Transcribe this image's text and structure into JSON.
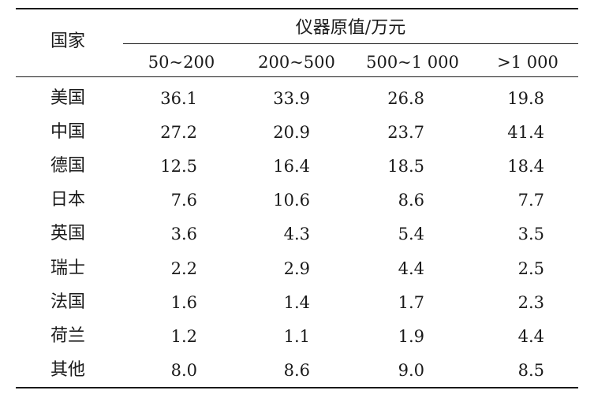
{
  "table": {
    "corner_header": "国家",
    "group_header": "仪器原值/万元",
    "columns": [
      "50~200",
      "200~500",
      "500~1 000",
      ">1 000"
    ],
    "rows": [
      {
        "country": "美国",
        "values": [
          "36.1",
          "33.9",
          "26.8",
          "19.8"
        ]
      },
      {
        "country": "中国",
        "values": [
          "27.2",
          "20.9",
          "23.7",
          "41.4"
        ]
      },
      {
        "country": "德国",
        "values": [
          "12.5",
          "16.4",
          "18.5",
          "18.4"
        ]
      },
      {
        "country": "日本",
        "values": [
          "7.6",
          "10.6",
          "8.6",
          "7.7"
        ]
      },
      {
        "country": "英国",
        "values": [
          "3.6",
          "4.3",
          "5.4",
          "3.5"
        ]
      },
      {
        "country": "瑞士",
        "values": [
          "2.2",
          "2.9",
          "4.4",
          "2.5"
        ]
      },
      {
        "country": "法国",
        "values": [
          "1.6",
          "1.4",
          "1.7",
          "2.3"
        ]
      },
      {
        "country": "荷兰",
        "values": [
          "1.2",
          "1.1",
          "1.9",
          "4.4"
        ]
      },
      {
        "country": "其他",
        "values": [
          "8.0",
          "8.6",
          "9.0",
          "8.5"
        ]
      }
    ]
  }
}
